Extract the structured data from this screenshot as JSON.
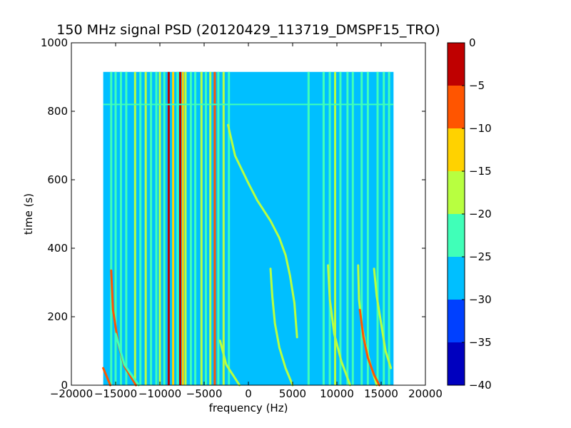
{
  "chart_data": {
    "type": "heatmap",
    "title": "150 MHz signal PSD (20120429_113719_DMSPF15_TRO)",
    "xlabel": "frequency (Hz)",
    "ylabel": "time (s)",
    "xlim": [
      -20000,
      20000
    ],
    "ylim": [
      0,
      1000
    ],
    "x_ticks": [
      -20000,
      -15000,
      -10000,
      -5000,
      0,
      5000,
      10000,
      15000,
      20000
    ],
    "x_tick_labels": [
      "−20000",
      "−15000",
      "−10000",
      "−5000",
      "0",
      "5000",
      "10000",
      "15000",
      "20000"
    ],
    "y_ticks": [
      0,
      200,
      400,
      600,
      800,
      1000
    ],
    "y_tick_labels": [
      "0",
      "200",
      "400",
      "600",
      "800",
      "1000"
    ],
    "data_extent": {
      "frequency": [
        -16400,
        16400
      ],
      "time": [
        0,
        915
      ]
    },
    "background_level": -27.5,
    "colorbar": {
      "range": [
        -40,
        0
      ],
      "ticks": [
        0,
        -5,
        -10,
        -15,
        -20,
        -25,
        -30,
        -35,
        -40
      ],
      "tick_labels": [
        "0",
        "−5",
        "−10",
        "−15",
        "−20",
        "−25",
        "−30",
        "−35",
        "−40"
      ],
      "levels": [
        {
          "range": [
            -40,
            -35
          ],
          "color": "#0000bf"
        },
        {
          "range": [
            -35,
            -30
          ],
          "color": "#0040ff"
        },
        {
          "range": [
            -30,
            -25
          ],
          "color": "#00bfff"
        },
        {
          "range": [
            -25,
            -20
          ],
          "color": "#40ffb8"
        },
        {
          "range": [
            -20,
            -15
          ],
          "color": "#b8ff40"
        },
        {
          "range": [
            -15,
            -10
          ],
          "color": "#ffd200"
        },
        {
          "range": [
            -10,
            -5
          ],
          "color": "#ff5500"
        },
        {
          "range": [
            -5,
            0
          ],
          "color": "#bf0000"
        }
      ]
    },
    "vertical_lines": [
      {
        "f": -15500,
        "level": -22.5
      },
      {
        "f": -15000,
        "level": -22.5
      },
      {
        "f": -14400,
        "level": -22.5
      },
      {
        "f": -13800,
        "level": -22.5
      },
      {
        "f": -12800,
        "level": -17.5
      },
      {
        "f": -12200,
        "level": -22.5
      },
      {
        "f": -11600,
        "level": -17.5
      },
      {
        "f": -11000,
        "level": -22.5
      },
      {
        "f": -10400,
        "level": -22.5
      },
      {
        "f": -10000,
        "level": -17.5
      },
      {
        "f": -9500,
        "level": -22.5
      },
      {
        "f": -9000,
        "level": -2.5
      },
      {
        "f": -8500,
        "level": -12.5
      },
      {
        "f": -8000,
        "level": -22.5
      },
      {
        "f": -7700,
        "level": -2.5
      },
      {
        "f": -7400,
        "level": -12.5
      },
      {
        "f": -7100,
        "level": -17.5
      },
      {
        "f": -6500,
        "level": -22.5
      },
      {
        "f": -6000,
        "level": -22.5
      },
      {
        "f": -5300,
        "level": -17.5
      },
      {
        "f": -4800,
        "level": -22.5
      },
      {
        "f": -4300,
        "level": -17.5
      },
      {
        "f": -3800,
        "level": -7.5
      },
      {
        "f": -3400,
        "level": -22.5
      },
      {
        "f": -2800,
        "level": -17.5
      },
      {
        "f": -2200,
        "level": -22.5
      },
      {
        "f": 6800,
        "level": -22.5
      },
      {
        "f": 8500,
        "level": -22.5
      },
      {
        "f": 9200,
        "level": -22.5
      },
      {
        "f": 9800,
        "level": -17.5
      },
      {
        "f": 10400,
        "level": -22.5
      },
      {
        "f": 11200,
        "level": -22.5
      },
      {
        "f": 11800,
        "level": -22.5
      },
      {
        "f": 12800,
        "level": -22.5
      },
      {
        "f": 13500,
        "level": -22.5
      },
      {
        "f": 14600,
        "level": -22.5
      },
      {
        "f": 15300,
        "level": -22.5
      },
      {
        "f": 15900,
        "level": -22.5
      }
    ],
    "horizontal_lines": [
      {
        "t": 820,
        "level": -22.5
      }
    ],
    "sweep_curves": [
      {
        "level": -7.5,
        "points": [
          [
            -16400,
            50
          ],
          [
            -15600,
            0
          ]
        ]
      },
      {
        "level": -7.5,
        "points": [
          [
            -15500,
            335
          ],
          [
            -15300,
            220
          ],
          [
            -14700,
            120
          ],
          [
            -14000,
            55
          ],
          [
            -12700,
            0
          ]
        ]
      },
      {
        "level": -22.5,
        "points": [
          [
            -15000,
            150
          ],
          [
            -14000,
            60
          ],
          [
            -12400,
            0
          ]
        ]
      },
      {
        "level": -17.5,
        "points": [
          [
            -3200,
            130
          ],
          [
            -2500,
            60
          ],
          [
            -1000,
            0
          ]
        ]
      },
      {
        "level": -17.5,
        "points": [
          [
            -2300,
            760
          ],
          [
            -1500,
            670
          ],
          [
            0,
            590
          ],
          [
            1000,
            540
          ],
          [
            2500,
            480
          ],
          [
            3500,
            430
          ],
          [
            4200,
            380
          ],
          [
            4700,
            320
          ],
          [
            5200,
            240
          ],
          [
            5500,
            140
          ]
        ]
      },
      {
        "level": -17.5,
        "points": [
          [
            2500,
            340
          ],
          [
            2700,
            260
          ],
          [
            3000,
            180
          ],
          [
            3500,
            110
          ],
          [
            4200,
            50
          ],
          [
            5000,
            0
          ]
        ]
      },
      {
        "level": -17.5,
        "points": [
          [
            9000,
            350
          ],
          [
            9200,
            250
          ],
          [
            9700,
            150
          ],
          [
            10500,
            70
          ],
          [
            11500,
            0
          ]
        ]
      },
      {
        "level": -17.5,
        "points": [
          [
            12400,
            350
          ],
          [
            12500,
            250
          ],
          [
            12800,
            180
          ],
          [
            13200,
            120
          ],
          [
            13800,
            60
          ],
          [
            14500,
            0
          ]
        ]
      },
      {
        "level": -7.5,
        "points": [
          [
            12600,
            220
          ],
          [
            13000,
            140
          ],
          [
            13500,
            80
          ],
          [
            14200,
            30
          ],
          [
            14800,
            0
          ]
        ]
      },
      {
        "level": -17.5,
        "points": [
          [
            14200,
            340
          ],
          [
            14500,
            260
          ],
          [
            15000,
            180
          ],
          [
            15500,
            100
          ],
          [
            16100,
            50
          ]
        ]
      }
    ]
  }
}
